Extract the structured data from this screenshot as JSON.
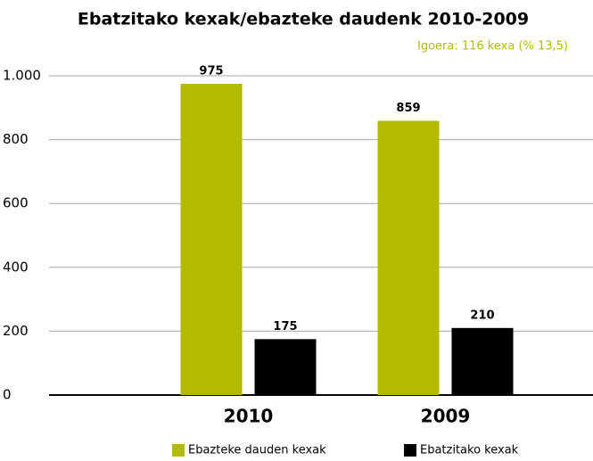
{
  "chart_data": {
    "type": "bar",
    "title": "Ebatzitako kexak/ebazteke daudenk 2010-2009",
    "annotation": "Igoera: 116 kexa (% 13,5)",
    "categories": [
      "2010",
      "2009"
    ],
    "series": [
      {
        "name": "Ebazteke dauden kexak",
        "color": "#b3bb00",
        "values": [
          975,
          859
        ]
      },
      {
        "name": "Ebatzitako kexak",
        "color": "#000000",
        "values": [
          175,
          210
        ]
      }
    ],
    "ylim": [
      0,
      1000
    ],
    "yticks": [
      0,
      200,
      400,
      600,
      800,
      {
        "value": 1000,
        "label": "1.000"
      }
    ],
    "grid": true
  }
}
